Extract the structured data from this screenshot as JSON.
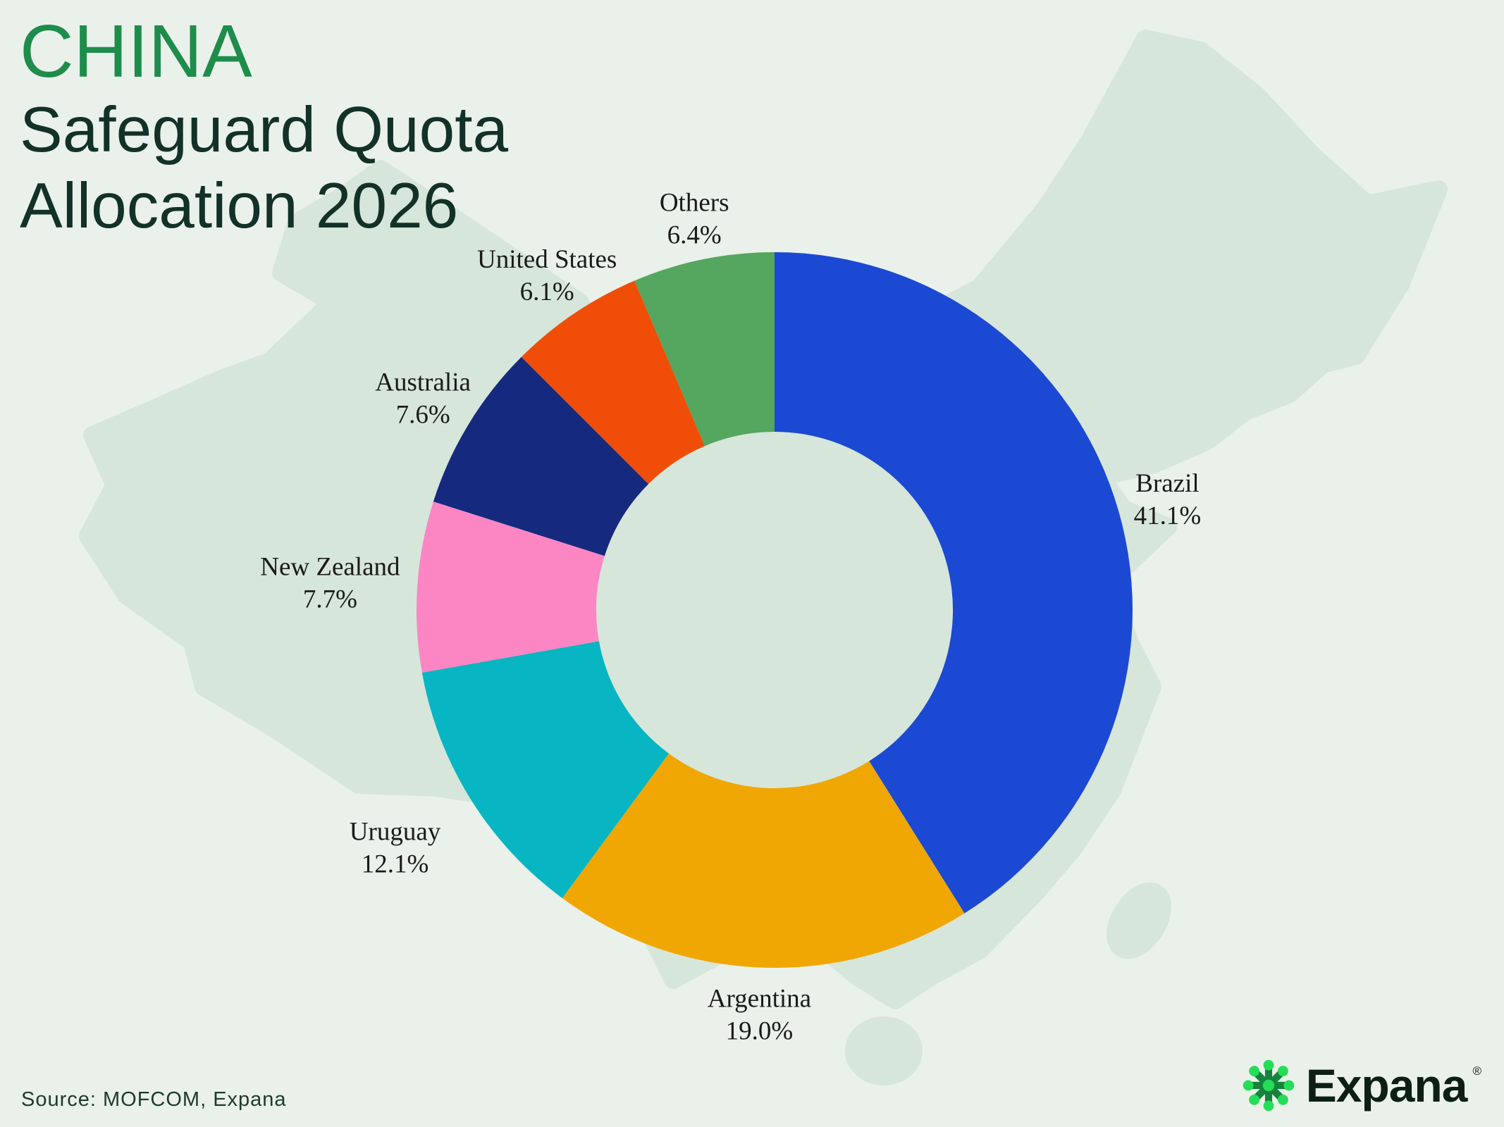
{
  "header": {
    "country": "CHINA",
    "title_line1": "Safeguard Quota",
    "title_line2": "Allocation 2026"
  },
  "footer": {
    "source": "Source: MOFCOM, Expana",
    "brand": "Expana",
    "registered": "®"
  },
  "colors": {
    "background": "#EAF1EA",
    "map_silhouette": "#D7E6DA",
    "title_green": "#1E8C4B",
    "title_dark": "#123127",
    "label_text": "#1A1A1A",
    "source_text": "#1C3A2D",
    "brand_text": "#0D1F15",
    "logo_green_bright": "#25DD57",
    "logo_green_dark": "#15833C"
  },
  "chart_data": {
    "type": "pie",
    "style": "donut",
    "title": "CHINA Safeguard Quota Allocation 2026",
    "categories": [
      "Brazil",
      "Argentina",
      "Uruguay",
      "New Zealand",
      "Australia",
      "United States",
      "Others"
    ],
    "values": [
      41.1,
      19.0,
      12.1,
      7.7,
      7.6,
      6.1,
      6.4
    ],
    "value_labels": [
      "41.1%",
      "19.0%",
      "12.1%",
      "7.7%",
      "7.6%",
      "6.1%",
      "6.4%"
    ],
    "colors": [
      "#1C49D3",
      "#F0A703",
      "#07B6C2",
      "#FC86C3",
      "#15297E",
      "#F04E08",
      "#55A65E"
    ],
    "start_angle_deg": 0,
    "direction": "clockwise",
    "inner_radius_ratio": 0.5,
    "legend": "none",
    "data_labels": "outside"
  }
}
